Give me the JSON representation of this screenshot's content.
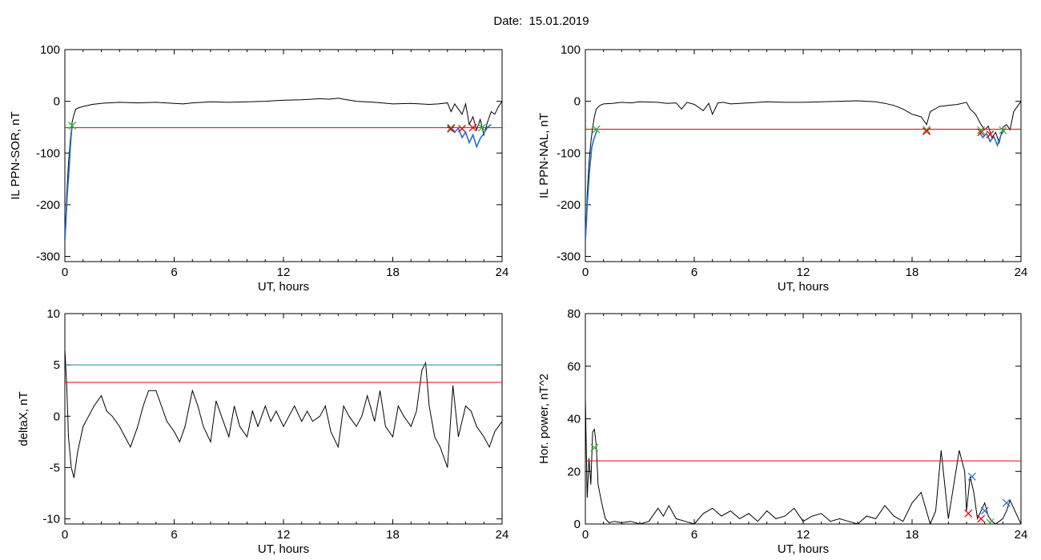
{
  "title": "Date:  15.01.2019",
  "chart_data": [
    {
      "type": "line",
      "xlabel": "UT, hours",
      "ylabel": "IL PPN-SOR, nT",
      "xlim": [
        0,
        24
      ],
      "ylim": [
        -310,
        100
      ],
      "xticks": [
        "0",
        "6",
        "12",
        "18",
        "24"
      ],
      "yticks": [
        "100",
        "0",
        "-100",
        "-200",
        "-300"
      ],
      "thresholds": [
        {
          "y": -51,
          "color": "#e8000b"
        }
      ],
      "series": [
        {
          "color": "#000000",
          "x": [
            0,
            0.05,
            0.1,
            0.2,
            0.3,
            0.4,
            0.5,
            0.6,
            0.8,
            1,
            1.5,
            2,
            3,
            4,
            5,
            6,
            6.5,
            7,
            8,
            9,
            10,
            11,
            12,
            13,
            14,
            14.5,
            15,
            15.5,
            16,
            17,
            18,
            19,
            20,
            20.5,
            21,
            21.2,
            21.4,
            21.6,
            21.8,
            22,
            22.2,
            22.4,
            22.6,
            22.8,
            23,
            23.2,
            23.4,
            23.6,
            23.8,
            24
          ],
          "y": [
            -270,
            -230,
            -180,
            -120,
            -75,
            -40,
            -25,
            -15,
            -12,
            -10,
            -6,
            -4,
            -2,
            -3,
            -2,
            -4,
            -5,
            -3,
            -1,
            -2,
            -1,
            0,
            2,
            3,
            5,
            4,
            6,
            3,
            0,
            -2,
            -5,
            -4,
            -6,
            -5,
            -3,
            -20,
            -5,
            -15,
            -25,
            -5,
            -45,
            -30,
            -55,
            -35,
            -65,
            -40,
            -20,
            -25,
            -10,
            0
          ]
        },
        {
          "color": "#1f6fd6",
          "x": [
            0,
            0.05,
            0.1,
            0.15,
            0.2,
            0.25,
            0.3,
            0.35,
            0.4
          ],
          "y": [
            -270,
            -240,
            -200,
            -170,
            -150,
            -120,
            -90,
            -65,
            -45
          ]
        },
        {
          "color": "#1f6fd6",
          "x": [
            21.0,
            21.2,
            21.4,
            21.6,
            21.8,
            22.0,
            22.2,
            22.4,
            22.6,
            22.8,
            23.0,
            23.2,
            23.4
          ],
          "y": [
            -48,
            -55,
            -60,
            -52,
            -70,
            -60,
            -80,
            -65,
            -88,
            -72,
            -62,
            -50,
            -45
          ]
        }
      ],
      "markers": [
        {
          "x": 0.4,
          "y": -47,
          "color": "#3ab03a"
        },
        {
          "x": 21.2,
          "y": -51,
          "color": "#3ab03a"
        },
        {
          "x": 21.2,
          "y": -53,
          "color": "#e8000b"
        },
        {
          "x": 21.8,
          "y": -53,
          "color": "#e8000b"
        },
        {
          "x": 22.4,
          "y": -51,
          "color": "#e8000b"
        },
        {
          "x": 22.9,
          "y": -51,
          "color": "#3ab03a"
        }
      ]
    },
    {
      "type": "line",
      "xlabel": "UT, hours",
      "ylabel": "IL PPN-NAL, nT",
      "xlim": [
        0,
        24
      ],
      "ylim": [
        -310,
        100
      ],
      "xticks": [
        "0",
        "6",
        "12",
        "18",
        "24"
      ],
      "yticks": [
        "100",
        "0",
        "-100",
        "-200",
        "-300"
      ],
      "thresholds": [
        {
          "y": -54,
          "color": "#e8000b"
        }
      ],
      "series": [
        {
          "color": "#000000",
          "x": [
            0,
            0.05,
            0.1,
            0.2,
            0.3,
            0.4,
            0.5,
            0.6,
            0.8,
            1,
            1.5,
            2,
            2.5,
            3,
            4,
            4.5,
            5,
            5.3,
            5.6,
            6,
            6.5,
            6.8,
            7,
            7.3,
            7.6,
            8,
            9,
            10,
            11,
            12,
            13,
            14,
            15,
            16,
            16.5,
            17,
            17.5,
            18,
            18.5,
            18.8,
            19,
            19.5,
            20,
            20.5,
            21,
            21.2,
            21.5,
            21.8,
            22,
            22.2,
            22.4,
            22.6,
            22.8,
            23,
            23.2,
            23.4,
            23.6,
            23.8,
            24
          ],
          "y": [
            -270,
            -230,
            -180,
            -120,
            -80,
            -50,
            -30,
            -15,
            -8,
            -5,
            -4,
            -2,
            -3,
            -1,
            -2,
            -4,
            -3,
            -15,
            -2,
            -6,
            -18,
            -4,
            -25,
            -3,
            -2,
            -5,
            -3,
            -1,
            -2,
            -2,
            -1,
            0,
            1,
            -1,
            -4,
            -8,
            -15,
            -25,
            -30,
            -45,
            -20,
            -10,
            -8,
            -6,
            -2,
            -15,
            -25,
            -45,
            -55,
            -48,
            -70,
            -60,
            -80,
            -50,
            -45,
            -55,
            -20,
            -10,
            0
          ]
        },
        {
          "color": "#1f6fd6",
          "x": [
            0,
            0.05,
            0.1,
            0.15,
            0.2,
            0.25,
            0.3,
            0.35,
            0.45,
            0.55,
            0.65
          ],
          "y": [
            -270,
            -240,
            -200,
            -175,
            -150,
            -125,
            -110,
            -90,
            -75,
            -65,
            -55
          ]
        },
        {
          "color": "#1f6fd6",
          "x": [
            21.7,
            21.9,
            22.1,
            22.3,
            22.5,
            22.7,
            22.9,
            23.1
          ],
          "y": [
            -60,
            -70,
            -62,
            -78,
            -68,
            -85,
            -65,
            -55
          ]
        }
      ],
      "markers": [
        {
          "x": 0.6,
          "y": -54,
          "color": "#3ab03a"
        },
        {
          "x": 18.8,
          "y": -55,
          "color": "#3ab03a"
        },
        {
          "x": 18.8,
          "y": -58,
          "color": "#e8000b"
        },
        {
          "x": 21.8,
          "y": -56,
          "color": "#3ab03a"
        },
        {
          "x": 21.8,
          "y": -60,
          "color": "#e8000b"
        },
        {
          "x": 22.3,
          "y": -64,
          "color": "#e8000b"
        },
        {
          "x": 23.0,
          "y": -56,
          "color": "#3ab03a"
        }
      ]
    },
    {
      "type": "line",
      "xlabel": "UT, hours",
      "ylabel": "deltaX, nT",
      "xlim": [
        0,
        24
      ],
      "ylim": [
        -10.5,
        10
      ],
      "xticks": [
        "0",
        "6",
        "12",
        "18",
        "24"
      ],
      "yticks": [
        "10",
        "5",
        "0",
        "-5",
        "-10"
      ],
      "thresholds": [
        {
          "y": 5.0,
          "color": "#1a8a8a"
        },
        {
          "y": 3.3,
          "color": "#e8000b"
        }
      ],
      "series": [
        {
          "color": "#000000",
          "x": [
            0,
            0.1,
            0.2,
            0.35,
            0.5,
            0.7,
            1,
            1.3,
            1.6,
            2,
            2.3,
            2.6,
            3,
            3.3,
            3.6,
            4,
            4.3,
            4.6,
            5,
            5.3,
            5.6,
            6,
            6.3,
            6.6,
            7,
            7.3,
            7.6,
            8,
            8.3,
            8.6,
            9,
            9.3,
            9.6,
            10,
            10.3,
            10.6,
            11,
            11.3,
            11.6,
            12,
            12.3,
            12.6,
            13,
            13.3,
            13.6,
            14,
            14.3,
            14.6,
            15,
            15.3,
            15.6,
            16,
            16.3,
            16.6,
            17,
            17.3,
            17.6,
            18,
            18.3,
            18.6,
            19,
            19.3,
            19.6,
            19.8,
            20,
            20.3,
            20.6,
            21,
            21.3,
            21.6,
            22,
            22.3,
            22.6,
            23,
            23.3,
            23.6,
            24
          ],
          "y": [
            6.5,
            3,
            -2,
            -5,
            -6,
            -3.5,
            -1,
            0,
            1,
            2,
            0.5,
            0,
            -1,
            -2,
            -3,
            -1,
            1,
            2.5,
            2.5,
            1,
            -0.5,
            -1.5,
            -2.5,
            -1,
            2.5,
            1,
            -1,
            -2.5,
            1.5,
            0,
            -2,
            1,
            -1,
            -2,
            0.5,
            -1,
            1,
            -0.5,
            0.5,
            -1,
            0,
            1,
            -0.5,
            0.5,
            -0.5,
            0,
            1,
            -1.5,
            -3,
            1,
            0,
            -1,
            0,
            2,
            -0.5,
            2.5,
            -1,
            -2,
            1,
            0,
            -1,
            0.5,
            4.5,
            5.2,
            1,
            -2,
            -3,
            -5,
            3,
            -2,
            1,
            0.5,
            -1,
            -2,
            -3,
            -1.5,
            -0.5
          ]
        }
      ],
      "markers": []
    },
    {
      "type": "line",
      "xlabel": "UT, hours",
      "ylabel": "Hor. power, nT^2",
      "xlim": [
        0,
        24
      ],
      "ylim": [
        0,
        80
      ],
      "xticks": [
        "0",
        "6",
        "12",
        "18",
        "24"
      ],
      "yticks": [
        "80",
        "60",
        "40",
        "20",
        "0"
      ],
      "thresholds": [
        {
          "y": 24,
          "color": "#e8000b"
        }
      ],
      "series": [
        {
          "color": "#000000",
          "x": [
            0,
            0.1,
            0.2,
            0.3,
            0.4,
            0.5,
            0.6,
            0.7,
            0.9,
            1.1,
            1.3,
            1.6,
            2,
            2.5,
            3,
            3.5,
            4,
            4.3,
            4.6,
            5,
            5.5,
            6,
            6.5,
            7,
            7.5,
            8,
            8.5,
            9,
            9.5,
            10,
            10.5,
            11,
            11.5,
            12,
            12.5,
            13,
            13.5,
            14,
            14.5,
            15,
            15.5,
            16,
            16.5,
            17,
            17.5,
            18,
            18.5,
            19,
            19.3,
            19.6,
            20,
            20.3,
            20.6,
            20.9,
            21,
            21.2,
            21.4,
            21.6,
            21.8,
            22,
            22.2,
            22.4,
            22.6,
            22.8,
            23,
            23.2,
            23.4,
            23.6,
            24
          ],
          "y": [
            48,
            10,
            25,
            15,
            35,
            36,
            30,
            15,
            8,
            2,
            0.5,
            1,
            0.5,
            1,
            0,
            1,
            6,
            3,
            7,
            2,
            1,
            0,
            4,
            6,
            3,
            5,
            2,
            4,
            1,
            5,
            2,
            3,
            6,
            1,
            3,
            4,
            1,
            2,
            1,
            0,
            3,
            2,
            7,
            3,
            1,
            8,
            12,
            0,
            5,
            28,
            2,
            15,
            28,
            20,
            5,
            18,
            12,
            2,
            5,
            8,
            3,
            1,
            0,
            1,
            2,
            5,
            9,
            6,
            0
          ]
        }
      ],
      "markers": [
        {
          "x": 0.5,
          "y": 29,
          "color": "#3ab03a"
        },
        {
          "x": 21.3,
          "y": 18,
          "color": "#1f6fd6"
        },
        {
          "x": 21.1,
          "y": 4,
          "color": "#e8000b"
        },
        {
          "x": 21.8,
          "y": 2,
          "color": "#e8000b"
        },
        {
          "x": 22.0,
          "y": 5,
          "color": "#1f6fd6"
        },
        {
          "x": 22.3,
          "y": 0.5,
          "color": "#3ab03a"
        },
        {
          "x": 23.2,
          "y": 8,
          "color": "#1f6fd6"
        }
      ]
    }
  ]
}
